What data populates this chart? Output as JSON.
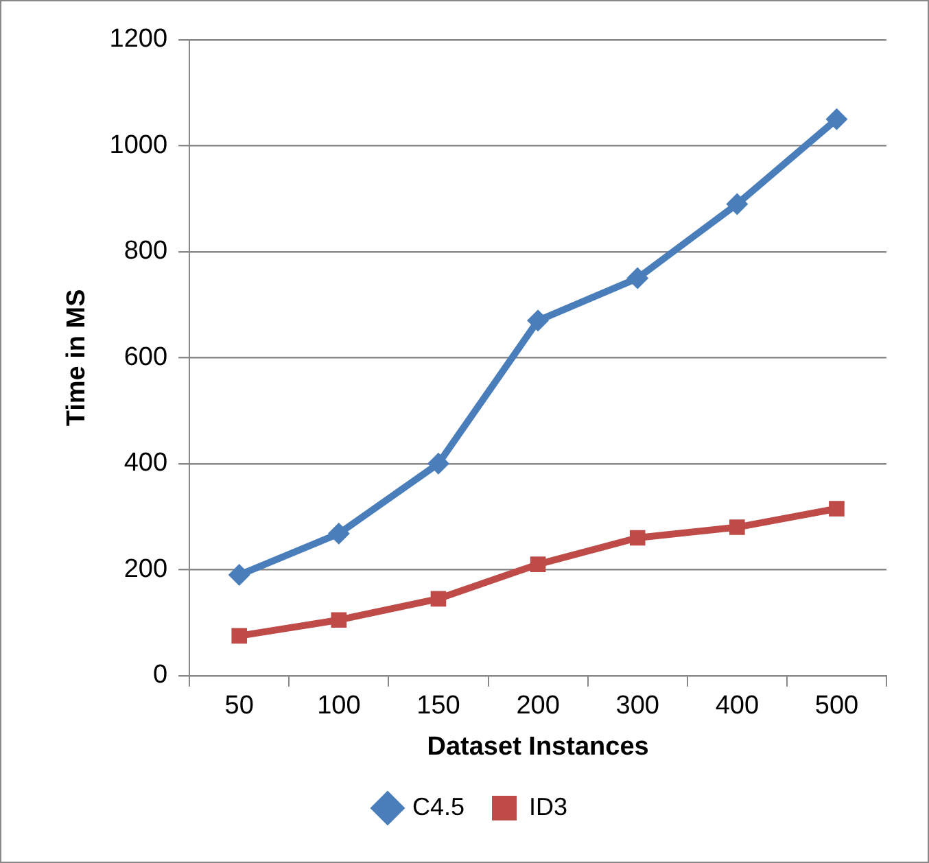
{
  "chart_data": {
    "type": "line",
    "xlabel": "Dataset Instances",
    "ylabel": "Time in MS",
    "categories": [
      "50",
      "100",
      "150",
      "200",
      "300",
      "400",
      "500"
    ],
    "series": [
      {
        "name": "C4.5",
        "color": "#4a7ebb",
        "marker": "diamond",
        "values": [
          190,
          268,
          400,
          670,
          750,
          890,
          1050
        ]
      },
      {
        "name": "ID3",
        "color": "#be4b48",
        "marker": "square",
        "values": [
          75,
          105,
          145,
          210,
          260,
          280,
          315
        ]
      }
    ],
    "ylim": [
      0,
      1200
    ],
    "yticks": [
      0,
      200,
      400,
      600,
      800,
      1000,
      1200
    ],
    "grid": "y",
    "legend": "bottom",
    "line_style": "solid"
  }
}
